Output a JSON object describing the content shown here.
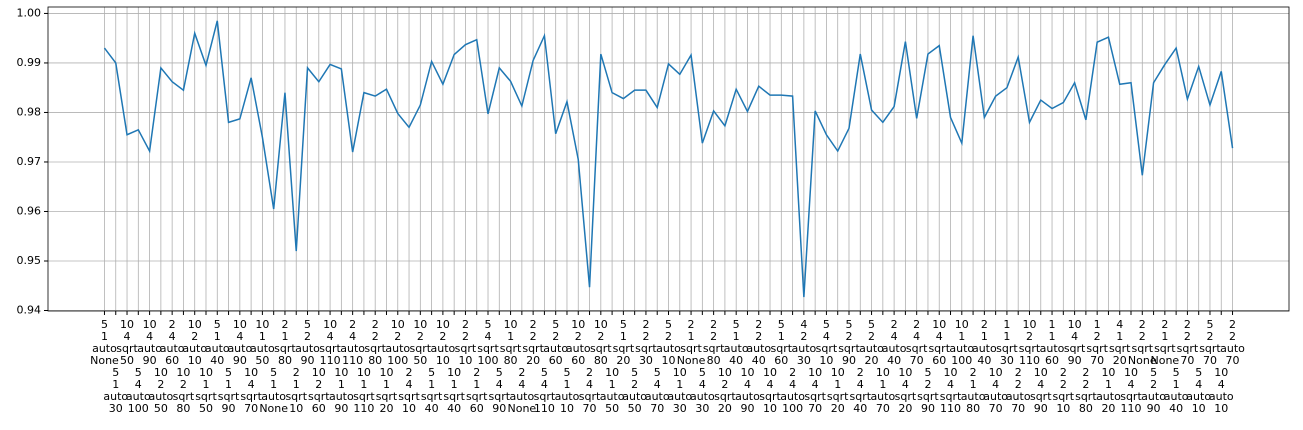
{
  "chart_data": {
    "type": "line",
    "color": "#1f77b4",
    "grid": true,
    "ylim": [
      0.9399,
      1.0013
    ],
    "yticks": [
      0.94,
      0.95,
      0.96,
      0.97,
      0.98,
      0.99,
      {
        "value": 1,
        "label": "1.00"
      }
    ],
    "categories": [
      [
        "5",
        "1",
        "auto",
        "None"
      ],
      [
        "5",
        "1",
        "auto",
        "30"
      ],
      [
        "10",
        "4",
        "sqrt",
        "50"
      ],
      [
        "5",
        "4",
        "auto",
        "100"
      ],
      [
        "10",
        "4",
        "auto",
        "90"
      ],
      [
        "10",
        "2",
        "auto",
        "50"
      ],
      [
        "2",
        "4",
        "auto",
        "60"
      ],
      [
        "10",
        "2",
        "sqrt",
        "80"
      ],
      [
        "10",
        "2",
        "auto",
        "10"
      ],
      [
        "10",
        "1",
        "sqrt",
        "50"
      ],
      [
        "5",
        "1",
        "auto",
        "40"
      ],
      [
        "5",
        "1",
        "sqrt",
        "90"
      ],
      [
        "10",
        "4",
        "auto",
        "90"
      ],
      [
        "10",
        "4",
        "sqrt",
        "70"
      ],
      [
        "10",
        "1",
        "auto",
        "50"
      ],
      [
        "5",
        "1",
        "auto",
        "None"
      ],
      [
        "2",
        "1",
        "sqrt",
        "80"
      ],
      [
        "2",
        "1",
        "sqrt",
        "10"
      ],
      [
        "5",
        "2",
        "auto",
        "90"
      ],
      [
        "10",
        "2",
        "sqrt",
        "60"
      ],
      [
        "10",
        "4",
        "sqrt",
        "110"
      ],
      [
        "10",
        "1",
        "auto",
        "90"
      ],
      [
        "2",
        "4",
        "auto",
        "110"
      ],
      [
        "10",
        "1",
        "sqrt",
        "110"
      ],
      [
        "2",
        "2",
        "sqrt",
        "80"
      ],
      [
        "10",
        "1",
        "sqrt",
        "20"
      ],
      [
        "10",
        "2",
        "auto",
        "100"
      ],
      [
        "2",
        "4",
        "sqrt",
        "10"
      ],
      [
        "10",
        "2",
        "sqrt",
        "50"
      ],
      [
        "5",
        "1",
        "sqrt",
        "40"
      ],
      [
        "10",
        "2",
        "auto",
        "10"
      ],
      [
        "10",
        "1",
        "sqrt",
        "40"
      ],
      [
        "2",
        "2",
        "sqrt",
        "10"
      ],
      [
        "2",
        "1",
        "sqrt",
        "60"
      ],
      [
        "5",
        "4",
        "sqrt",
        "100"
      ],
      [
        "5",
        "4",
        "sqrt",
        "90"
      ],
      [
        "10",
        "1",
        "sqrt",
        "80"
      ],
      [
        "2",
        "4",
        "auto",
        "None"
      ],
      [
        "2",
        "2",
        "sqrt",
        "20"
      ],
      [
        "5",
        "4",
        "sqrt",
        "110"
      ],
      [
        "5",
        "2",
        "auto",
        "60"
      ],
      [
        "5",
        "1",
        "auto",
        "10"
      ],
      [
        "10",
        "2",
        "auto",
        "60"
      ],
      [
        "2",
        "4",
        "sqrt",
        "70"
      ],
      [
        "10",
        "2",
        "sqrt",
        "80"
      ],
      [
        "10",
        "1",
        "auto",
        "50"
      ],
      [
        "5",
        "1",
        "sqrt",
        "20"
      ],
      [
        "5",
        "2",
        "auto",
        "50"
      ],
      [
        "2",
        "2",
        "sqrt",
        "30"
      ],
      [
        "5",
        "4",
        "auto",
        "70"
      ],
      [
        "5",
        "2",
        "auto",
        "10"
      ],
      [
        "10",
        "1",
        "auto",
        "30"
      ],
      [
        "2",
        "1",
        "sqrt",
        "None"
      ],
      [
        "5",
        "4",
        "auto",
        "30"
      ],
      [
        "2",
        "2",
        "sqrt",
        "80"
      ],
      [
        "10",
        "2",
        "sqrt",
        "20"
      ],
      [
        "5",
        "1",
        "auto",
        "40"
      ],
      [
        "10",
        "4",
        "auto",
        "90"
      ],
      [
        "2",
        "2",
        "auto",
        "40"
      ],
      [
        "10",
        "4",
        "sqrt",
        "10"
      ],
      [
        "5",
        "1",
        "sqrt",
        "60"
      ],
      [
        "2",
        "4",
        "auto",
        "100"
      ],
      [
        "4",
        "2",
        "auto",
        "30"
      ],
      [
        "10",
        "4",
        "sqrt",
        "70"
      ],
      [
        "5",
        "4",
        "sqrt",
        "10"
      ],
      [
        "10",
        "1",
        "sqrt",
        "20"
      ],
      [
        "5",
        "2",
        "sqrt",
        "90"
      ],
      [
        "2",
        "4",
        "sqrt",
        "40"
      ],
      [
        "5",
        "2",
        "auto",
        "20"
      ],
      [
        "10",
        "1",
        "auto",
        "70"
      ],
      [
        "2",
        "4",
        "auto",
        "40"
      ],
      [
        "10",
        "4",
        "sqrt",
        "20"
      ],
      [
        "2",
        "4",
        "sqrt",
        "70"
      ],
      [
        "5",
        "2",
        "sqrt",
        "90"
      ],
      [
        "10",
        "4",
        "sqrt",
        "60"
      ],
      [
        "10",
        "4",
        "sqrt",
        "110"
      ],
      [
        "10",
        "1",
        "auto",
        "100"
      ],
      [
        "2",
        "1",
        "auto",
        "80"
      ],
      [
        "2",
        "1",
        "auto",
        "40"
      ],
      [
        "10",
        "4",
        "auto",
        "70"
      ],
      [
        "1",
        "1",
        "sqrt",
        "30"
      ],
      [
        "2",
        "2",
        "auto",
        "70"
      ],
      [
        "10",
        "2",
        "sqrt",
        "110"
      ],
      [
        "10",
        "4",
        "sqrt",
        "90"
      ],
      [
        "1",
        "1",
        "auto",
        "60"
      ],
      [
        "2",
        "2",
        "sqrt",
        "10"
      ],
      [
        "10",
        "4",
        "sqrt",
        "90"
      ],
      [
        "2",
        "2",
        "sqrt",
        "80"
      ],
      [
        "1",
        "2",
        "sqrt",
        "70"
      ],
      [
        "10",
        "1",
        "auto",
        "20"
      ],
      [
        "4",
        "1",
        "sqrt",
        "20"
      ],
      [
        "10",
        "4",
        "sqrt",
        "110"
      ],
      [
        "2",
        "2",
        "sqrt",
        "None"
      ],
      [
        "5",
        "2",
        "auto",
        "90"
      ],
      [
        "2",
        "1",
        "sqrt",
        "None"
      ],
      [
        "5",
        "1",
        "auto",
        "40"
      ],
      [
        "2",
        "2",
        "sqrt",
        "70"
      ],
      [
        "5",
        "4",
        "auto",
        "10"
      ],
      [
        "5",
        "2",
        "sqrt",
        "70"
      ],
      [
        "10",
        "4",
        "auto",
        "10"
      ],
      [
        "2",
        "2",
        "auto",
        "70"
      ]
    ],
    "values": [
      0.993,
      0.99,
      0.9755,
      0.9765,
      0.9722,
      0.989,
      0.9862,
      0.9845,
      0.996,
      0.9895,
      0.9985,
      0.978,
      0.9787,
      0.987,
      0.975,
      0.9605,
      0.984,
      0.952,
      0.989,
      0.9862,
      0.9897,
      0.9888,
      0.972,
      0.984,
      0.9833,
      0.9847,
      0.9798,
      0.977,
      0.9815,
      0.9903,
      0.9857,
      0.9917,
      0.9937,
      0.9947,
      0.9797,
      0.989,
      0.9863,
      0.9813,
      0.9905,
      0.9955,
      0.9757,
      0.9822,
      0.9705,
      0.9447,
      0.9918,
      0.984,
      0.9828,
      0.9845,
      0.9845,
      0.981,
      0.9898,
      0.9877,
      0.9916,
      0.9738,
      0.9803,
      0.9773,
      0.9847,
      0.9802,
      0.9853,
      0.9835,
      0.9835,
      0.9833,
      0.9427,
      0.9803,
      0.9755,
      0.9722,
      0.9768,
      0.9918,
      0.9805,
      0.978,
      0.9812,
      0.9943,
      0.9788,
      0.9918,
      0.9935,
      0.979,
      0.9738,
      0.9955,
      0.979,
      0.9833,
      0.985,
      0.9912,
      0.978,
      0.9825,
      0.9808,
      0.982,
      0.986,
      0.9785,
      0.9942,
      0.9952,
      0.9857,
      0.986,
      0.9673,
      0.986,
      0.9897,
      0.993,
      0.9827,
      0.9893,
      0.9815,
      0.9883,
      0.9728
    ]
  }
}
